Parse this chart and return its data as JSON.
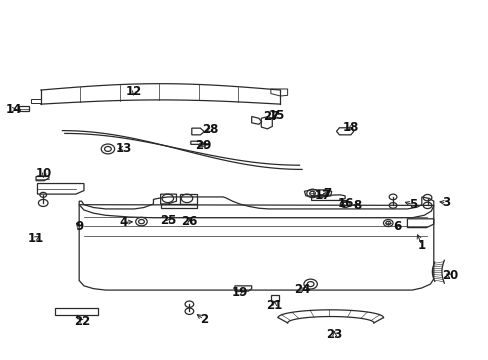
{
  "bg_color": "#ffffff",
  "line_color": "#2a2a2a",
  "figsize": [
    4.89,
    3.6
  ],
  "dpi": 100,
  "label_fontsize": 8.5,
  "labels": {
    "1": [
      0.87,
      0.315,
      0.84,
      0.34
    ],
    "2": [
      0.41,
      0.108,
      0.4,
      0.13
    ],
    "3": [
      0.92,
      0.435,
      0.895,
      0.44
    ],
    "4": [
      0.25,
      0.38,
      0.275,
      0.383
    ],
    "5": [
      0.85,
      0.43,
      0.825,
      0.435
    ],
    "6": [
      0.82,
      0.37,
      0.8,
      0.375
    ],
    "7": [
      0.67,
      0.46,
      0.65,
      0.458
    ],
    "8": [
      0.735,
      0.428,
      0.712,
      0.432
    ],
    "9": [
      0.155,
      0.37,
      0.148,
      0.385
    ],
    "10": [
      0.082,
      0.515,
      0.082,
      0.5
    ],
    "11": [
      0.068,
      0.335,
      0.08,
      0.35
    ],
    "12": [
      0.27,
      0.75,
      0.27,
      0.73
    ],
    "13": [
      0.245,
      0.59,
      0.235,
      0.588
    ],
    "14": [
      0.022,
      0.698,
      0.04,
      0.695
    ],
    "15": [
      0.57,
      0.68,
      0.555,
      0.672
    ],
    "16": [
      0.71,
      0.43,
      0.695,
      0.443
    ],
    "17": [
      0.665,
      0.453,
      0.648,
      0.458
    ],
    "18": [
      0.72,
      0.645,
      0.72,
      0.625
    ],
    "19": [
      0.49,
      0.182,
      0.508,
      0.19
    ],
    "20": [
      0.93,
      0.228,
      0.912,
      0.235
    ],
    "21": [
      0.565,
      0.148,
      0.567,
      0.163
    ],
    "22": [
      0.165,
      0.1,
      0.172,
      0.118
    ],
    "23": [
      0.69,
      0.065,
      0.69,
      0.082
    ],
    "24": [
      0.62,
      0.192,
      0.63,
      0.2
    ],
    "25": [
      0.345,
      0.385,
      0.358,
      0.398
    ],
    "26": [
      0.385,
      0.385,
      0.385,
      0.4
    ],
    "27": [
      0.555,
      0.68,
      0.542,
      0.672
    ],
    "28": [
      0.428,
      0.64,
      0.425,
      0.63
    ],
    "29": [
      0.415,
      0.598,
      0.418,
      0.608
    ]
  }
}
